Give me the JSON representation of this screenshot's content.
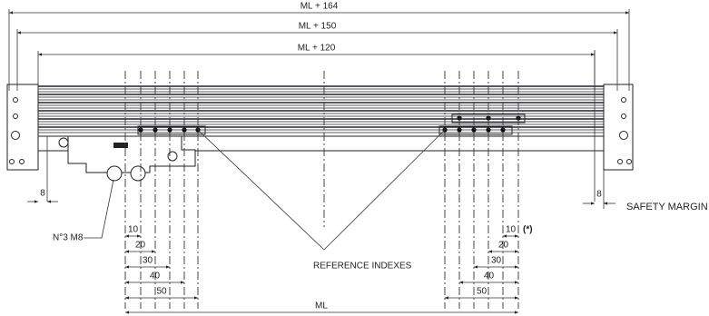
{
  "dimensions": {
    "overall": [
      "ML + 164",
      "ML + 150",
      "ML + 120"
    ],
    "left_margin": "8",
    "right_margin": "8",
    "left_indexes": [
      "10",
      "20",
      "30",
      "40",
      "50"
    ],
    "right_indexes": [
      "10",
      "20",
      "30",
      "40",
      "50"
    ],
    "measuring_length": "ML"
  },
  "labels": {
    "screws": "N°3 M8",
    "reference": "REFERENCE INDEXES",
    "note": "(*)",
    "safety": "SAFETY MARGIN"
  }
}
